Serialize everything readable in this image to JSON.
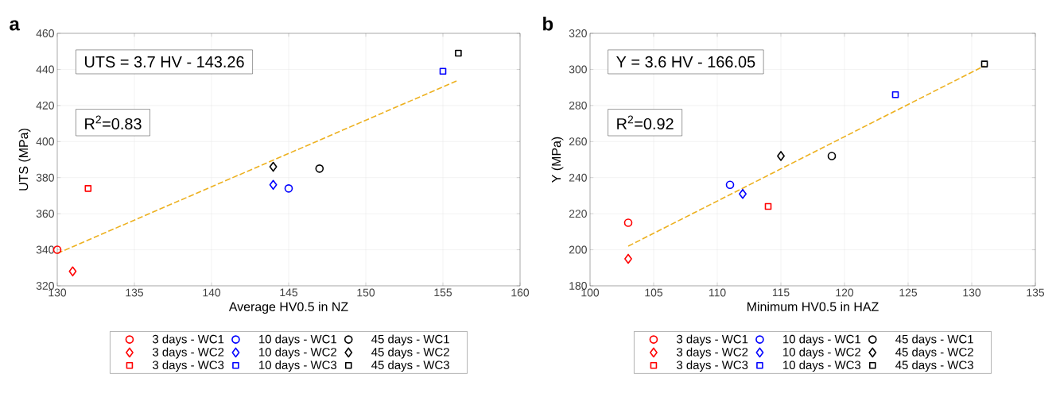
{
  "chart_data": [
    {
      "type": "scatter",
      "title": "a",
      "xlabel": "Average HV0.5 in NZ",
      "ylabel": "UTS (MPa)",
      "xlim": [
        130,
        160
      ],
      "xticks": [
        130,
        135,
        140,
        145,
        150,
        155,
        160
      ],
      "ylim": [
        320,
        460
      ],
      "yticks": [
        320,
        340,
        360,
        380,
        400,
        420,
        440,
        460
      ],
      "grid": true,
      "legend": "bottom",
      "annotations": [
        "UTS = 3.7 HV - 143.26",
        "R$^{2}$=0.83"
      ],
      "series": [
        {
          "name": "3 days - WC1",
          "color": "#ff0000",
          "marker": "circle",
          "x": [
            130
          ],
          "values": [
            340
          ]
        },
        {
          "name": "10 days - WC1",
          "color": "#0000ff",
          "marker": "circle",
          "x": [
            145
          ],
          "values": [
            374
          ]
        },
        {
          "name": "45 days - WC1",
          "color": "#000000",
          "marker": "circle",
          "x": [
            147
          ],
          "values": [
            385
          ]
        },
        {
          "name": "3 days - WC2",
          "color": "#ff0000",
          "marker": "diamond",
          "x": [
            131
          ],
          "values": [
            328
          ]
        },
        {
          "name": "10 days - WC2",
          "color": "#0000ff",
          "marker": "diamond",
          "x": [
            144
          ],
          "values": [
            376
          ]
        },
        {
          "name": "45 days - WC2",
          "color": "#000000",
          "marker": "diamond",
          "x": [
            144
          ],
          "values": [
            386
          ]
        },
        {
          "name": "3 days - WC3",
          "color": "#ff0000",
          "marker": "square",
          "x": [
            132
          ],
          "values": [
            374
          ]
        },
        {
          "name": "10 days - WC3",
          "color": "#0000ff",
          "marker": "square",
          "x": [
            155
          ],
          "values": [
            439
          ]
        },
        {
          "name": "45 days - WC3",
          "color": "#000000",
          "marker": "square",
          "x": [
            156
          ],
          "values": [
            449
          ]
        },
        {
          "type": "line",
          "color": "#edb120",
          "line_style": "dashed",
          "marker": "none",
          "x": [
            130,
            156
          ],
          "values": [
            338,
            434
          ]
        }
      ]
    },
    {
      "type": "scatter",
      "title": "b",
      "xlabel": "Minimum HV0.5 in HAZ",
      "ylabel": "Y (MPa)",
      "xlim": [
        100,
        135
      ],
      "xticks": [
        100,
        105,
        110,
        115,
        120,
        125,
        130,
        135
      ],
      "ylim": [
        180,
        320
      ],
      "yticks": [
        180,
        200,
        220,
        240,
        260,
        280,
        300,
        320
      ],
      "grid": true,
      "legend": "bottom",
      "annotations": [
        "Y = 3.6 HV - 166.05",
        "R$^{2}$=0.92"
      ],
      "series": [
        {
          "name": "3 days - WC1",
          "color": "#ff0000",
          "marker": "circle",
          "x": [
            103
          ],
          "values": [
            215
          ]
        },
        {
          "name": "10 days - WC1",
          "color": "#0000ff",
          "marker": "circle",
          "x": [
            111
          ],
          "values": [
            236
          ]
        },
        {
          "name": "45 days - WC1",
          "color": "#000000",
          "marker": "circle",
          "x": [
            119
          ],
          "values": [
            252
          ]
        },
        {
          "name": "3 days - WC2",
          "color": "#ff0000",
          "marker": "diamond",
          "x": [
            103
          ],
          "values": [
            195
          ]
        },
        {
          "name": "10 days - WC2",
          "color": "#0000ff",
          "marker": "diamond",
          "x": [
            112
          ],
          "values": [
            231
          ]
        },
        {
          "name": "45 days - WC2",
          "color": "#000000",
          "marker": "diamond",
          "x": [
            115
          ],
          "values": [
            252
          ]
        },
        {
          "name": "3 days - WC3",
          "color": "#ff0000",
          "marker": "square",
          "x": [
            114
          ],
          "values": [
            224
          ]
        },
        {
          "name": "10 days - WC3",
          "color": "#0000ff",
          "marker": "square",
          "x": [
            124
          ],
          "values": [
            286
          ]
        },
        {
          "name": "45 days - WC3",
          "color": "#000000",
          "marker": "square",
          "x": [
            131
          ],
          "values": [
            303
          ]
        },
        {
          "type": "line",
          "color": "#edb120",
          "line_style": "dashed",
          "marker": "none",
          "x": [
            103,
            131
          ],
          "values": [
            202,
            302
          ]
        }
      ]
    }
  ]
}
